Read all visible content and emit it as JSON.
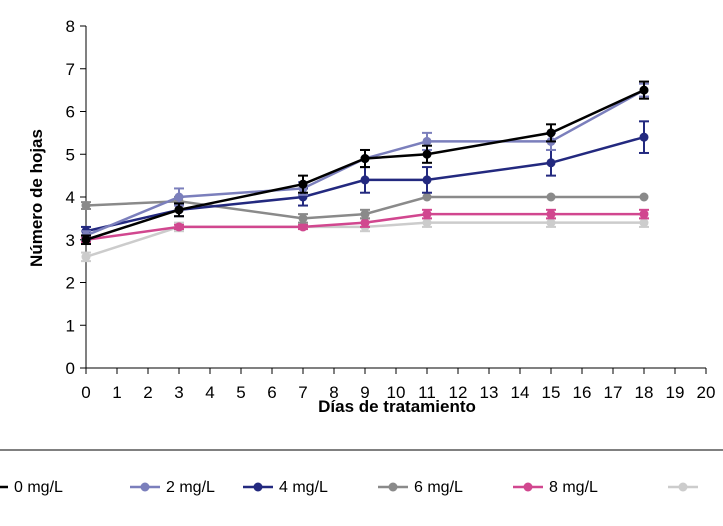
{
  "chart_data": {
    "type": "line",
    "title": "",
    "xlabel": "Días de tratamiento",
    "ylabel": "Número de hojas",
    "xlim": [
      0,
      20
    ],
    "ylim": [
      0,
      8
    ],
    "x_ticks": [
      "0",
      "1",
      "2",
      "3",
      "4",
      "5",
      "6",
      "7",
      "8",
      "9",
      "10",
      "11",
      "12",
      "13",
      "14",
      "15",
      "16",
      "17",
      "18",
      "19",
      "20"
    ],
    "y_ticks": [
      "0",
      "1",
      "2",
      "3",
      "4",
      "5",
      "6",
      "7",
      "8"
    ],
    "grid": false,
    "legend_position": "bottom",
    "x": [
      0,
      3,
      7,
      9,
      11,
      15,
      18
    ],
    "series": [
      {
        "name": "0 mg/L",
        "color": "#000000",
        "values": [
          3.0,
          3.7,
          4.3,
          4.9,
          5.0,
          5.5,
          6.5
        ],
        "errors": [
          0.1,
          0.15,
          0.2,
          0.2,
          0.2,
          0.2,
          0.2
        ]
      },
      {
        "name": "2 mg/L",
        "color": "#7b7fbc",
        "values": [
          3.1,
          4.0,
          4.2,
          4.9,
          5.3,
          5.3,
          6.5
        ],
        "errors": [
          0.1,
          0.2,
          0.15,
          0.2,
          0.2,
          0.2,
          0.15
        ]
      },
      {
        "name": "4 mg/L",
        "color": "#23297f",
        "values": [
          3.2,
          3.7,
          4.0,
          4.4,
          4.4,
          4.8,
          5.4
        ],
        "errors": [
          0.1,
          0.15,
          0.2,
          0.3,
          0.3,
          0.3,
          0.37
        ]
      },
      {
        "name": "6 mg/L",
        "color": "#8a8a8a",
        "values": [
          3.8,
          3.9,
          3.5,
          3.6,
          4.0,
          4.0,
          4.0
        ],
        "errors": [
          0.08,
          0.1,
          0.1,
          0.1,
          0.0,
          0.0,
          0.0
        ]
      },
      {
        "name": "8 mg/L",
        "color": "#d1478f",
        "values": [
          3.0,
          3.3,
          3.3,
          3.4,
          3.6,
          3.6,
          3.6
        ],
        "errors": [
          0.05,
          0.05,
          0.05,
          0.1,
          0.1,
          0.1,
          0.1
        ]
      },
      {
        "name": "",
        "color": "#cccccc",
        "values": [
          2.6,
          3.3,
          3.3,
          3.3,
          3.4,
          3.4,
          3.4
        ],
        "errors": [
          0.1,
          0.1,
          0.05,
          0.1,
          0.1,
          0.1,
          0.1
        ]
      }
    ]
  }
}
